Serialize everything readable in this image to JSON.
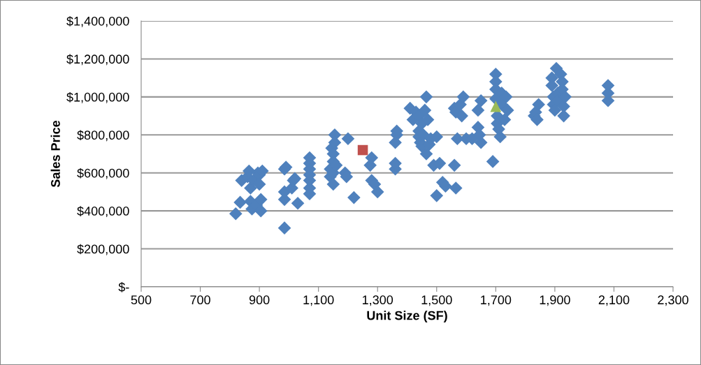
{
  "chart_data": {
    "type": "scatter",
    "xlabel": "Unit Size (SF)",
    "ylabel": "Sales Price",
    "grid": "y",
    "legend": false,
    "xlim": [
      500,
      2300
    ],
    "xticks": [
      {
        "value": 500,
        "label": "500"
      },
      {
        "value": 700,
        "label": "700"
      },
      {
        "value": 900,
        "label": "900"
      },
      {
        "value": 1100,
        "label": "1,100"
      },
      {
        "value": 1300,
        "label": "1,300"
      },
      {
        "value": 1500,
        "label": "1,500"
      },
      {
        "value": 1700,
        "label": "1,700"
      },
      {
        "value": 1900,
        "label": "1,900"
      },
      {
        "value": 2100,
        "label": "2,100"
      },
      {
        "value": 2300,
        "label": "2,300"
      }
    ],
    "ylim": [
      0,
      1400000
    ],
    "yticks": [
      {
        "value": 0,
        "label": "$-"
      },
      {
        "value": 200000,
        "label": "$200,000"
      },
      {
        "value": 400000,
        "label": "$400,000"
      },
      {
        "value": 600000,
        "label": "$600,000"
      },
      {
        "value": 800000,
        "label": "$800,000"
      },
      {
        "value": 1000000,
        "label": "$1,000,000"
      },
      {
        "value": 1200000,
        "label": "$1,200,000"
      },
      {
        "value": 1400000,
        "label": "$1,400,000"
      }
    ],
    "series": [
      {
        "color": "#4f81bd",
        "marker": "diamond",
        "x": [
          820,
          835,
          840,
          860,
          865,
          870,
          870,
          875,
          880,
          890,
          895,
          900,
          905,
          905,
          910,
          900,
          985,
          985,
          985,
          985,
          990,
          1010,
          1015,
          1030,
          1020,
          1070,
          1070,
          1070,
          1070,
          1070,
          1070,
          1070,
          1140,
          1140,
          1145,
          1150,
          1150,
          1150,
          1150,
          1155,
          1155,
          1160,
          1190,
          1195,
          1200,
          1220,
          1275,
          1280,
          1280,
          1290,
          1300,
          1360,
          1360,
          1360,
          1365,
          1365,
          1410,
          1420,
          1430,
          1440,
          1440,
          1440,
          1445,
          1450,
          1450,
          1455,
          1460,
          1465,
          1465,
          1470,
          1475,
          1480,
          1490,
          1500,
          1500,
          1510,
          1520,
          1530,
          1560,
          1565,
          1560,
          1565,
          1570,
          1580,
          1585,
          1590,
          1600,
          1620,
          1640,
          1640,
          1645,
          1650,
          1650,
          1690,
          1700,
          1700,
          1700,
          1700,
          1705,
          1705,
          1710,
          1715,
          1720,
          1720,
          1730,
          1735,
          1740,
          1830,
          1835,
          1840,
          1845,
          1890,
          1890,
          1895,
          1895,
          1900,
          1905,
          1910,
          1910,
          1920,
          1925,
          1925,
          1930,
          1930,
          1935,
          2080,
          2080,
          2080
        ],
        "values": [
          385000,
          445000,
          560000,
          580000,
          610000,
          520000,
          450000,
          410000,
          560000,
          430000,
          600000,
          590000,
          460000,
          400000,
          610000,
          540000,
          310000,
          460000,
          500000,
          620000,
          630000,
          520000,
          560000,
          440000,
          570000,
          490000,
          520000,
          560000,
          590000,
          620000,
          650000,
          680000,
          580000,
          620000,
          730000,
          540000,
          600000,
          660000,
          700000,
          800000,
          760000,
          640000,
          600000,
          580000,
          780000,
          470000,
          640000,
          680000,
          560000,
          540000,
          500000,
          620000,
          650000,
          760000,
          800000,
          820000,
          940000,
          880000,
          920000,
          900000,
          820000,
          790000,
          760000,
          740000,
          860000,
          800000,
          930000,
          1000000,
          700000,
          880000,
          750000,
          780000,
          640000,
          790000,
          480000,
          650000,
          550000,
          530000,
          640000,
          520000,
          940000,
          920000,
          780000,
          960000,
          900000,
          1000000,
          780000,
          780000,
          840000,
          930000,
          800000,
          980000,
          760000,
          660000,
          1120000,
          1080000,
          1040000,
          990000,
          900000,
          860000,
          830000,
          790000,
          1020000,
          960000,
          880000,
          1000000,
          930000,
          900000,
          920000,
          880000,
          960000,
          1100000,
          1060000,
          1000000,
          960000,
          930000,
          1150000,
          1020000,
          980000,
          1120000,
          1080000,
          1040000,
          950000,
          900000,
          1000000,
          980000,
          1020000,
          1060000
        ]
      },
      {
        "color": "#c0504d",
        "marker": "square",
        "x": [
          1250
        ],
        "values": [
          720000
        ]
      },
      {
        "color": "#9bbb59",
        "marker": "triangle",
        "x": [
          1700
        ],
        "values": [
          950000
        ]
      }
    ]
  }
}
